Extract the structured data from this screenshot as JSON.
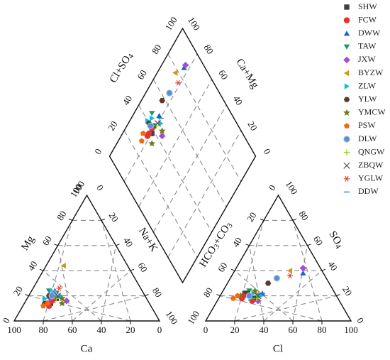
{
  "chart_data": {
    "type": "scatter",
    "subtype": "piper-trilinear",
    "grid": true,
    "legend_position": "right",
    "axes": {
      "cation": {
        "left_label": "Mg",
        "right_label": "Na+K",
        "bottom_label": "Ca",
        "left_ticks": [
          "20",
          "40",
          "60",
          "80",
          "100"
        ],
        "right_ticks": [
          "20",
          "40",
          "60",
          "80",
          "100"
        ],
        "bottom_ticks": [
          "100",
          "80",
          "60",
          "40",
          "20",
          "0"
        ],
        "apex_ticks": [
          "100",
          "0",
          "0"
        ]
      },
      "anion": {
        "left_label": "HCO3+CO3",
        "right_label": "SO4",
        "bottom_label": "Cl",
        "left_ticks": [
          "20",
          "40",
          "60",
          "80",
          "100"
        ],
        "right_ticks": [
          "20",
          "40",
          "60",
          "80"
        ],
        "bottom_ticks": [
          "0",
          "20",
          "40",
          "60",
          "80",
          "100"
        ],
        "apex_ticks": [
          "0",
          "100",
          "0"
        ]
      },
      "diamond": {
        "left_label": "Cl+SO4",
        "right_label": "Ca+Mg",
        "left_ticks": [
          "0",
          "20",
          "40",
          "60",
          "80",
          "100"
        ],
        "right_ticks": [
          "100",
          "80",
          "60",
          "40",
          "20",
          "0"
        ]
      }
    },
    "series": [
      {
        "name": "SHW",
        "color": "#404040",
        "marker": "square",
        "cation": [
          [
            68,
            14
          ],
          [
            62,
            18
          ]
        ],
        "anion": [
          [
            58,
            18
          ],
          [
            62,
            22
          ]
        ]
      },
      {
        "name": "FCW",
        "color": "#e8302c",
        "marker": "circle",
        "cation": [
          [
            70,
            12
          ],
          [
            66,
            16
          ],
          [
            64,
            18
          ]
        ],
        "anion": [
          [
            60,
            16
          ],
          [
            64,
            20
          ],
          [
            66,
            18
          ]
        ]
      },
      {
        "name": "DWW",
        "color": "#1f5fd6",
        "marker": "triangle-up",
        "cation": [
          [
            60,
            24
          ],
          [
            62,
            20
          ]
        ],
        "anion": [
          [
            14,
            38
          ],
          [
            50,
            22
          ]
        ]
      },
      {
        "name": "TAW",
        "color": "#1a9a60",
        "marker": "triangle-down",
        "cation": [
          [
            64,
            24
          ],
          [
            60,
            22
          ]
        ],
        "anion": [
          [
            54,
            20
          ],
          [
            58,
            24
          ]
        ]
      },
      {
        "name": "JXW",
        "color": "#a24fd2",
        "marker": "diamond",
        "cation": [
          [
            66,
            18
          ],
          [
            56,
            16
          ]
        ],
        "anion": [
          [
            12,
            42
          ],
          [
            56,
            16
          ]
        ]
      },
      {
        "name": "BYZW",
        "color": "#c89b10",
        "marker": "triangle-left",
        "cation": [
          [
            44,
            44
          ]
        ],
        "anion": [
          [
            22,
            40
          ]
        ]
      },
      {
        "name": "ZLW",
        "color": "#1ab8d6",
        "marker": "triangle-right",
        "cation": [
          [
            58,
            20
          ],
          [
            62,
            24
          ],
          [
            70,
            18
          ]
        ],
        "anion": [
          [
            52,
            20
          ],
          [
            56,
            22
          ],
          [
            60,
            18
          ]
        ]
      },
      {
        "name": "YLW",
        "color": "#5e3a2c",
        "marker": "hexagon",
        "cation": [
          [
            72,
            14
          ],
          [
            66,
            20
          ]
        ],
        "anion": [
          [
            42,
            30
          ],
          [
            60,
            22
          ]
        ]
      },
      {
        "name": "YMCW",
        "color": "#6e7d1a",
        "marker": "star",
        "cation": [
          [
            60,
            14
          ],
          [
            58,
            18
          ]
        ],
        "anion": [
          [
            54,
            24
          ],
          [
            66,
            20
          ]
        ]
      },
      {
        "name": "PSW",
        "color": "#f06a14",
        "marker": "pentagon",
        "cation": [
          [
            74,
            12
          ],
          [
            70,
            14
          ]
        ],
        "anion": [
          [
            68,
            20
          ],
          [
            72,
            18
          ]
        ]
      },
      {
        "name": "DLW",
        "color": "#5b8fd0",
        "marker": "sphere",
        "cation": [
          [
            62,
            22
          ],
          [
            64,
            20
          ]
        ],
        "anion": [
          [
            34,
            34
          ],
          [
            60,
            20
          ]
        ]
      },
      {
        "name": "QNGW",
        "color": "#9dcc3a",
        "marker": "plus",
        "cation": [
          [
            62,
            18
          ]
        ],
        "anion": [
          [
            56,
            18
          ]
        ]
      },
      {
        "name": "ZBQW",
        "color": "#555555",
        "marker": "x",
        "cation": [
          [
            60,
            20
          ]
        ],
        "anion": [
          [
            54,
            20
          ]
        ]
      },
      {
        "name": "YGLW",
        "color": "#e8352c",
        "marker": "asterisk",
        "cation": [
          [
            56,
            26
          ]
        ],
        "anion": [
          [
            24,
            36
          ]
        ]
      },
      {
        "name": "DDW",
        "color": "#3a7bd0",
        "marker": "dash",
        "cation": [
          [
            60,
            20
          ]
        ],
        "anion": [
          [
            50,
            22
          ]
        ]
      }
    ]
  }
}
